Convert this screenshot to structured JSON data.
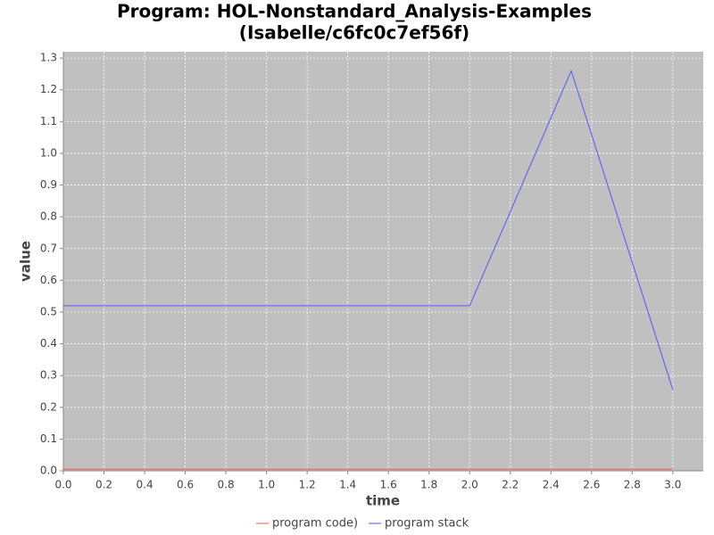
{
  "chart_data": {
    "type": "line",
    "title": [
      "Program: HOL-Nonstandard_Analysis-Examples",
      "(Isabelle/c6fc0c7ef56f)"
    ],
    "x_label": "time",
    "y_label": "value",
    "x": [
      0,
      0.5,
      1,
      1.5,
      2,
      2.5,
      3
    ],
    "series": [
      {
        "name": "program code)",
        "color": "#ff5555",
        "values": [
          0.005,
          0.005,
          0.005,
          0.005,
          0.005,
          0.005,
          0.005
        ]
      },
      {
        "name": "program stack",
        "color": "#5555ff",
        "values": [
          0.52,
          0.52,
          0.52,
          0.52,
          0.52,
          1.26,
          0.255
        ]
      }
    ],
    "xlim": [
      0,
      3.15
    ],
    "ylim": [
      0,
      1.32
    ],
    "xticks": [
      {
        "value": 0,
        "label": "0.0"
      },
      0.2,
      0.4,
      0.6,
      0.8,
      {
        "value": 1,
        "label": "1.0"
      },
      1.2,
      1.4,
      1.6,
      1.8,
      {
        "value": 2,
        "label": "2.0"
      },
      2.2,
      2.4,
      2.6,
      2.8,
      {
        "value": 3,
        "label": "3.0"
      }
    ],
    "yticks": [
      {
        "value": 0,
        "label": "0.0"
      },
      0.1,
      0.2,
      0.3,
      0.4,
      0.5,
      0.6,
      0.7,
      0.8,
      0.9,
      {
        "value": 1,
        "label": "1.0"
      },
      1.1,
      1.2,
      1.3
    ],
    "grid": true,
    "legend": "bottom",
    "plot_background": "#c0c0c0"
  }
}
